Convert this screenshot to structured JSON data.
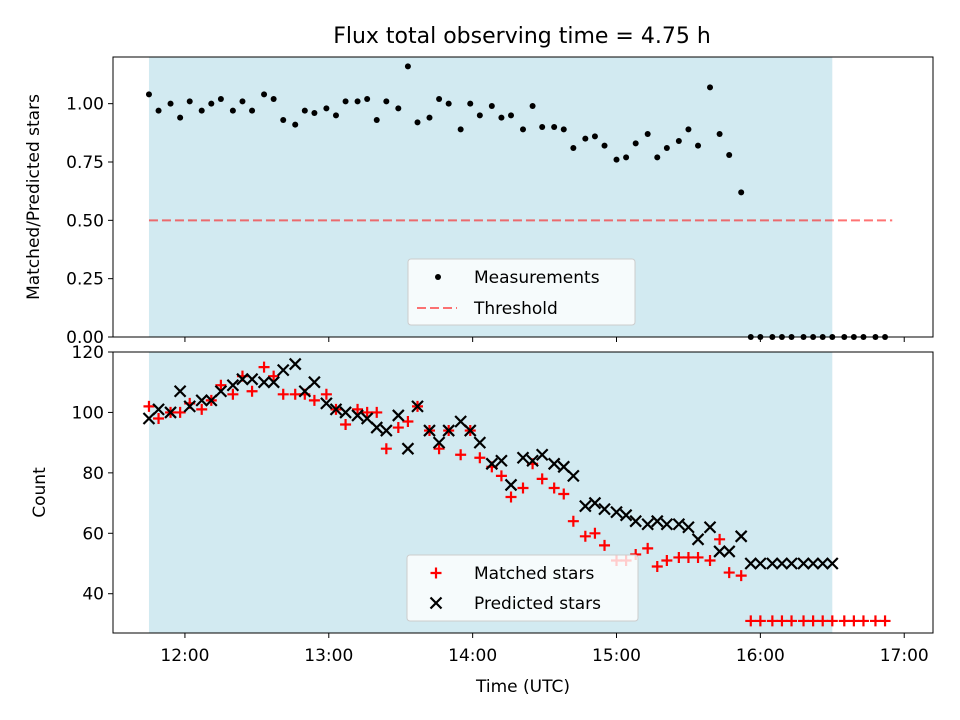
{
  "title": "Flux total observing time = 4.75 h",
  "colors": {
    "span": "#add8e6",
    "threshold": "#ff0000",
    "matched": "#ff0000",
    "predicted": "#000000",
    "measurement": "#000000"
  },
  "chart_data": [
    {
      "type": "scatter",
      "ylabel": "Matched/Predicted stars",
      "ylim": [
        0,
        1.2
      ],
      "yticks": [
        0.0,
        0.25,
        0.5,
        0.75,
        1.0
      ],
      "ytick_labels": [
        "0.00",
        "0.25",
        "0.50",
        "0.75",
        "1.00"
      ],
      "shaded_span": [
        "11:45",
        "16:30"
      ],
      "legend": {
        "placement": "lower center",
        "entries": [
          "Measurements",
          "Threshold"
        ]
      },
      "threshold": {
        "name": "Threshold",
        "y": 0.5,
        "x_range": [
          "11:45",
          "16:55"
        ]
      },
      "series": [
        {
          "name": "Measurements",
          "x": [
            "11:45",
            "11:49",
            "11:54",
            "11:58",
            "12:02",
            "12:07",
            "12:11",
            "12:15",
            "12:20",
            "12:24",
            "12:28",
            "12:33",
            "12:37",
            "12:41",
            "12:46",
            "12:50",
            "12:54",
            "12:59",
            "13:03",
            "13:07",
            "13:12",
            "13:16",
            "13:20",
            "13:24",
            "13:29",
            "13:33",
            "13:37",
            "13:42",
            "13:46",
            "13:50",
            "13:55",
            "13:59",
            "14:03",
            "14:08",
            "14:12",
            "14:16",
            "14:21",
            "14:25",
            "14:29",
            "14:34",
            "14:38",
            "14:42",
            "14:47",
            "14:51",
            "14:55",
            "15:00",
            "15:04",
            "15:08",
            "15:13",
            "15:17",
            "15:21",
            "15:26",
            "15:30",
            "15:34",
            "15:39",
            "15:43",
            "15:47",
            "15:52",
            "15:56",
            "16:00",
            "16:05",
            "16:09",
            "16:13",
            "16:18",
            "16:22",
            "16:26",
            "16:30",
            "16:35",
            "16:39",
            "16:43",
            "16:48",
            "16:52"
          ],
          "y": [
            1.04,
            0.97,
            1.0,
            0.94,
            1.01,
            0.97,
            1.0,
            1.02,
            0.97,
            1.01,
            0.97,
            1.04,
            1.02,
            0.93,
            0.91,
            0.97,
            0.96,
            0.98,
            0.95,
            1.01,
            1.01,
            1.02,
            0.93,
            1.01,
            0.98,
            1.16,
            0.92,
            0.94,
            1.02,
            1.0,
            0.89,
            1.0,
            0.95,
            0.99,
            0.94,
            0.95,
            0.89,
            0.99,
            0.9,
            0.9,
            0.89,
            0.81,
            0.85,
            0.86,
            0.82,
            0.76,
            0.77,
            0.83,
            0.87,
            0.77,
            0.81,
            0.84,
            0.89,
            0.82,
            1.07,
            0.87,
            0.78,
            0.62,
            0.0,
            0.0,
            0.0,
            0.0,
            0.0,
            0.0,
            0.0,
            0.0,
            0.0,
            0.0,
            0.0,
            0.0,
            0.0,
            0.0
          ]
        }
      ]
    },
    {
      "type": "scatter",
      "xlabel": "Time (UTC)",
      "ylabel": "Count",
      "ylim": [
        27,
        120
      ],
      "yticks": [
        40,
        60,
        80,
        100,
        120
      ],
      "xticks": [
        "12:00",
        "13:00",
        "14:00",
        "15:00",
        "16:00",
        "17:00"
      ],
      "shaded_span": [
        "11:45",
        "16:30"
      ],
      "legend": {
        "placement": "lower center",
        "entries": [
          "Matched stars",
          "Predicted stars"
        ]
      },
      "series": [
        {
          "name": "Matched stars",
          "x": [
            "11:45",
            "11:49",
            "11:54",
            "11:58",
            "12:02",
            "12:07",
            "12:11",
            "12:15",
            "12:20",
            "12:24",
            "12:28",
            "12:33",
            "12:37",
            "12:41",
            "12:46",
            "12:50",
            "12:54",
            "12:59",
            "13:03",
            "13:07",
            "13:12",
            "13:16",
            "13:20",
            "13:24",
            "13:29",
            "13:33",
            "13:37",
            "13:42",
            "13:46",
            "13:50",
            "13:55",
            "13:59",
            "14:03",
            "14:08",
            "14:12",
            "14:16",
            "14:21",
            "14:25",
            "14:29",
            "14:34",
            "14:38",
            "14:42",
            "14:47",
            "14:51",
            "14:55",
            "15:00",
            "15:04",
            "15:08",
            "15:13",
            "15:17",
            "15:21",
            "15:26",
            "15:30",
            "15:34",
            "15:39",
            "15:43",
            "15:47",
            "15:52",
            "15:56",
            "16:00",
            "16:05",
            "16:09",
            "16:13",
            "16:18",
            "16:22",
            "16:26",
            "16:30",
            "16:35",
            "16:39",
            "16:43",
            "16:48",
            "16:52"
          ],
          "y": [
            102,
            98,
            100,
            100,
            103,
            101,
            104,
            109,
            106,
            112,
            107,
            115,
            112,
            106,
            106,
            106,
            104,
            106,
            101,
            96,
            101,
            100,
            100,
            88,
            95,
            97,
            102,
            94,
            88,
            94,
            86,
            94,
            85,
            82,
            79,
            72,
            75,
            83,
            78,
            75,
            73,
            64,
            59,
            60,
            56,
            51,
            51,
            53,
            55,
            49,
            51,
            52,
            52,
            52,
            51,
            58,
            47,
            46,
            31,
            31,
            31,
            31,
            31,
            31,
            31,
            31,
            31,
            31,
            31,
            31,
            31,
            31
          ]
        },
        {
          "name": "Predicted stars",
          "x": [
            "11:45",
            "11:49",
            "11:54",
            "11:58",
            "12:02",
            "12:07",
            "12:11",
            "12:15",
            "12:20",
            "12:24",
            "12:28",
            "12:33",
            "12:37",
            "12:41",
            "12:46",
            "12:50",
            "12:54",
            "12:59",
            "13:03",
            "13:07",
            "13:12",
            "13:16",
            "13:20",
            "13:24",
            "13:29",
            "13:33",
            "13:37",
            "13:42",
            "13:46",
            "13:50",
            "13:55",
            "13:59",
            "14:03",
            "14:08",
            "14:12",
            "14:16",
            "14:21",
            "14:25",
            "14:29",
            "14:34",
            "14:38",
            "14:42",
            "14:47",
            "14:51",
            "14:55",
            "15:00",
            "15:04",
            "15:08",
            "15:13",
            "15:17",
            "15:21",
            "15:26",
            "15:30",
            "15:34",
            "15:39",
            "15:43",
            "15:47",
            "15:52",
            "15:56",
            "16:00",
            "16:05",
            "16:09",
            "16:13",
            "16:18",
            "16:22",
            "16:26",
            "16:30"
          ],
          "y": [
            98,
            101,
            100,
            107,
            102,
            104,
            104,
            107,
            109,
            111,
            111,
            110,
            110,
            114,
            116,
            107,
            110,
            103,
            101,
            100,
            99,
            98,
            95,
            94,
            99,
            88,
            102,
            94,
            90,
            94,
            97,
            94,
            90,
            83,
            84,
            76,
            85,
            84,
            86,
            83,
            82,
            79,
            69,
            70,
            68,
            67,
            66,
            64,
            63,
            64,
            63,
            63,
            62,
            58,
            62,
            54,
            54,
            59,
            50,
            50,
            50,
            50,
            50,
            50,
            50,
            50,
            50
          ]
        }
      ]
    }
  ]
}
